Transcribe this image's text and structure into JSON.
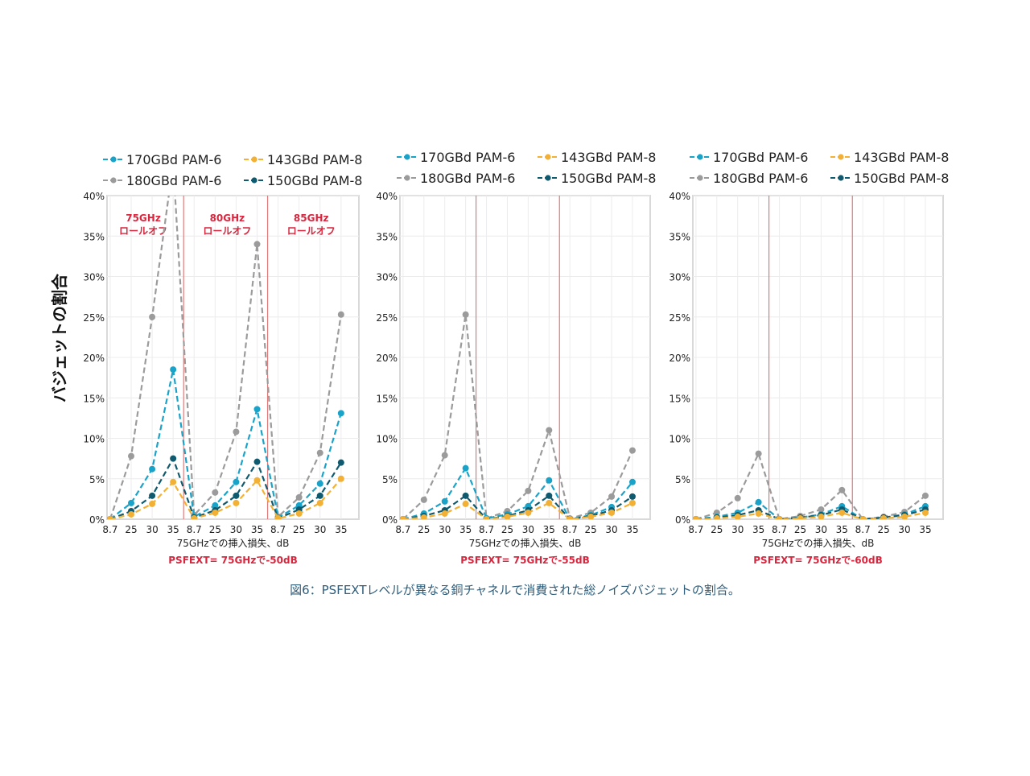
{
  "y_axis_label": "バジェットの割合",
  "caption": "図6：PSFEXTレベルが異なる銅チャネルで消費された総ノイズバジェットの割合。",
  "legend": [
    {
      "label": "170GBd PAM-6",
      "color": "#1aa3c9"
    },
    {
      "label": "143GBd PAM-8",
      "color": "#f2b134"
    },
    {
      "label": "180GBd PAM-6",
      "color": "#9b9b9b"
    },
    {
      "label": "150GBd PAM-8",
      "color": "#0f5a6e"
    }
  ],
  "roll_off_labels": [
    {
      "line1": "75GHz",
      "line2": "ロールオフ"
    },
    {
      "line1": "80GHz",
      "line2": "ロールオフ"
    },
    {
      "line1": "85GHz",
      "line2": "ロールオフ"
    }
  ],
  "colors": {
    "divider": "#e07b7b",
    "annotation": "#d7263d",
    "grid": "#ececec",
    "frame": "#d9d9d9"
  },
  "chart_data": [
    {
      "type": "line",
      "xlabel": "75GHzでの挿入損失、dB",
      "subtitle": "PSFEXT= 75GHzで-50dB",
      "categories": [
        "8.7",
        "25",
        "30",
        "35",
        "8.7",
        "25",
        "30",
        "35",
        "8.7",
        "25",
        "30",
        "35"
      ],
      "ylim": [
        0,
        40
      ],
      "y_ticks": [
        "0%",
        "5%",
        "10%",
        "15%",
        "20%",
        "25%",
        "30%",
        "35%",
        "40%"
      ],
      "series": [
        {
          "name": "180GBd PAM-6",
          "color": "#9b9b9b",
          "values": [
            0,
            7.8,
            25,
            44,
            0.5,
            3.3,
            10.8,
            34,
            0.3,
            2.7,
            8.2,
            25.3
          ]
        },
        {
          "name": "170GBd PAM-6",
          "color": "#1aa3c9",
          "values": [
            0,
            2,
            6.2,
            18.5,
            0.3,
            1.7,
            4.6,
            13.6,
            0.2,
            1.7,
            4.4,
            13.1
          ]
        },
        {
          "name": "150GBd PAM-8",
          "color": "#0f5a6e",
          "values": [
            0,
            1,
            2.9,
            7.5,
            0.2,
            1.1,
            2.9,
            7.1,
            0.1,
            1.2,
            2.9,
            7
          ]
        },
        {
          "name": "143GBd PAM-8",
          "color": "#f2b134",
          "values": [
            0,
            0.6,
            1.9,
            4.6,
            0.1,
            0.8,
            2,
            4.8,
            0.1,
            0.7,
            2,
            5
          ]
        }
      ]
    },
    {
      "type": "line",
      "xlabel": "75GHzでの挿入損失、dB",
      "subtitle": "PSFEXT= 75GHzで-55dB",
      "categories": [
        "8.7",
        "25",
        "30",
        "35",
        "8.7",
        "25",
        "30",
        "35",
        "8.7",
        "25",
        "30",
        "35"
      ],
      "ylim": [
        0,
        40
      ],
      "y_ticks": [
        "0%",
        "5%",
        "10%",
        "15%",
        "20%",
        "25%",
        "30%",
        "35%",
        "40%"
      ],
      "series": [
        {
          "name": "180GBd PAM-6",
          "color": "#9b9b9b",
          "values": [
            0,
            2.4,
            7.9,
            25.3,
            0.1,
            1,
            3.5,
            11,
            0.1,
            0.8,
            2.8,
            8.5
          ]
        },
        {
          "name": "170GBd PAM-6",
          "color": "#1aa3c9",
          "values": [
            0,
            0.7,
            2.2,
            6.3,
            0.1,
            0.6,
            1.6,
            4.8,
            0,
            0.5,
            1.5,
            4.6
          ]
        },
        {
          "name": "150GBd PAM-8",
          "color": "#0f5a6e",
          "values": [
            0,
            0.4,
            1.1,
            2.9,
            0,
            0.4,
            1.1,
            2.9,
            0,
            0.4,
            1.1,
            2.8
          ]
        },
        {
          "name": "143GBd PAM-8",
          "color": "#f2b134",
          "values": [
            0,
            0.2,
            0.7,
            1.9,
            0,
            0.3,
            0.8,
            2,
            0,
            0.3,
            0.8,
            2
          ]
        }
      ]
    },
    {
      "type": "line",
      "xlabel": "75GHzでの挿入損失、dB",
      "subtitle": "PSFEXT= 75GHzで-60dB",
      "categories": [
        "8.7",
        "25",
        "30",
        "35",
        "8.7",
        "25",
        "30",
        "35",
        "8.7",
        "25",
        "30",
        "35"
      ],
      "ylim": [
        0,
        40
      ],
      "y_ticks": [
        "0%",
        "5%",
        "10%",
        "15%",
        "20%",
        "25%",
        "30%",
        "35%",
        "40%"
      ],
      "series": [
        {
          "name": "180GBd PAM-6",
          "color": "#9b9b9b",
          "values": [
            0,
            0.8,
            2.6,
            8.1,
            0,
            0.4,
            1.2,
            3.6,
            0,
            0.3,
            0.9,
            2.9
          ]
        },
        {
          "name": "170GBd PAM-6",
          "color": "#1aa3c9",
          "values": [
            0,
            0.3,
            0.8,
            2.1,
            0,
            0.2,
            0.6,
            1.6,
            0,
            0.2,
            0.6,
            1.6
          ]
        },
        {
          "name": "150GBd PAM-8",
          "color": "#0f5a6e",
          "values": [
            0,
            0.2,
            0.5,
            1.1,
            0,
            0.2,
            0.5,
            1.2,
            0,
            0.2,
            0.5,
            1.2
          ]
        },
        {
          "name": "143GBd PAM-8",
          "color": "#f2b134",
          "values": [
            0,
            0.1,
            0.3,
            0.7,
            0,
            0.1,
            0.3,
            0.8,
            0,
            0.1,
            0.3,
            0.8
          ]
        }
      ]
    }
  ]
}
